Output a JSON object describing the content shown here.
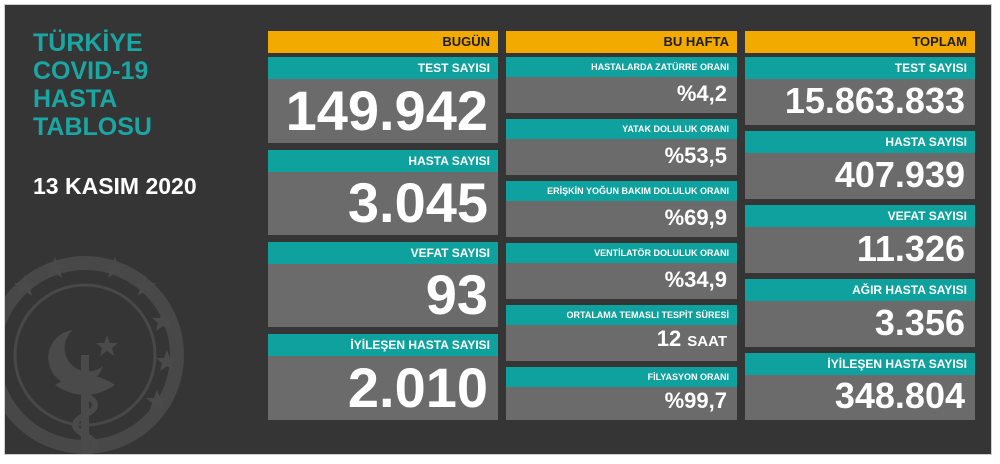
{
  "title": [
    "TÜRKİYE",
    "COVID-19",
    "HASTA",
    "TABLOSU"
  ],
  "date": "13 KASIM 2020",
  "today": {
    "header": "BUGÜN",
    "items": [
      {
        "label": "TEST SAYISI",
        "value": "149.942"
      },
      {
        "label": "HASTA SAYISI",
        "value": "3.045"
      },
      {
        "label": "VEFAT SAYISI",
        "value": "93"
      },
      {
        "label": "İYİLEŞEN HASTA SAYISI",
        "value": "2.010"
      }
    ]
  },
  "week": {
    "header": "BU HAFTA",
    "items": [
      {
        "label": "HASTALARDA ZATÜRRE ORANI",
        "value": "%4,2",
        "unit": ""
      },
      {
        "label": "YATAK DOLULUK ORANI",
        "value": "%53,5",
        "unit": ""
      },
      {
        "label": "ERİŞKİN YOĞUN BAKIM DOLULUK ORANI",
        "value": "%69,9",
        "unit": ""
      },
      {
        "label": "VENTİLATÖR DOLULUK ORANI",
        "value": "%34,9",
        "unit": ""
      },
      {
        "label": "ORTALAMA TEMASLI TESPİT SÜRESİ",
        "value": "12",
        "unit": "SAAT"
      },
      {
        "label": "FİLYASYON ORANI",
        "value": "%99,7",
        "unit": ""
      }
    ]
  },
  "total": {
    "header": "TOPLAM",
    "items": [
      {
        "label": "TEST SAYISI",
        "value": "15.863.833"
      },
      {
        "label": "HASTA SAYISI",
        "value": "407.939"
      },
      {
        "label": "VEFAT SAYISI",
        "value": "11.326"
      },
      {
        "label": "AĞIR HASTA SAYISI",
        "value": "3.356"
      },
      {
        "label": "İYİLEŞEN HASTA SAYISI",
        "value": "348.804"
      }
    ]
  },
  "colors": {
    "background": "#353535",
    "header_accent": "#f2a900",
    "label_teal": "#0fa19d",
    "card_gray": "#6b6b6b",
    "title_teal": "#1aa6a3"
  },
  "icons": [
    "ministry-emblem-icon"
  ]
}
